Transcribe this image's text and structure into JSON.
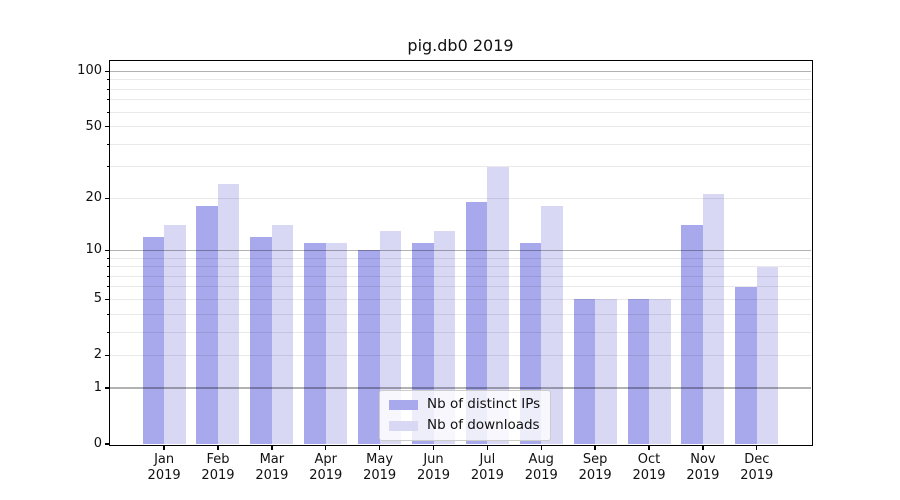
{
  "chart_data": {
    "type": "bar",
    "title": "pig.db0 2019",
    "categories": [
      "Jan",
      "Feb",
      "Mar",
      "Apr",
      "May",
      "Jun",
      "Jul",
      "Aug",
      "Sep",
      "Oct",
      "Nov",
      "Dec"
    ],
    "x_tick_year": "2019",
    "series": [
      {
        "key": "ips",
        "name": "Nb of distinct IPs",
        "color": "#a8a8ec",
        "values": [
          12,
          18,
          12,
          11,
          10,
          11,
          19,
          11,
          5,
          5,
          14,
          6
        ]
      },
      {
        "key": "downloads",
        "name": "Nb of downloads",
        "color": "#d8d8f5",
        "values": [
          14,
          24,
          14,
          11,
          13,
          13,
          30,
          18,
          5,
          5,
          21,
          8
        ]
      }
    ],
    "y_scale": "log10(1+value)",
    "ylim": [
      0,
      114
    ],
    "y_tick_values": [
      0,
      1,
      2,
      5,
      10,
      20,
      50,
      100
    ],
    "y_major_grid_values": [
      1,
      10,
      100
    ],
    "y_minor_grid_values": [
      2,
      3,
      4,
      5,
      6,
      7,
      8,
      9,
      20,
      30,
      40,
      50,
      60,
      70,
      80,
      90
    ],
    "grid": true,
    "legend_position": "lower center",
    "xlabel": "",
    "ylabel": ""
  },
  "colors": {
    "background": "#ffffff",
    "axis": "#000000",
    "major_grid": "rgba(0,0,0,0.30)",
    "minor_grid": "rgba(0,0,0,0.085)",
    "legend_border": "#cccccc",
    "legend_background": "rgba(255,255,255,0.8)",
    "text": "#111111"
  }
}
